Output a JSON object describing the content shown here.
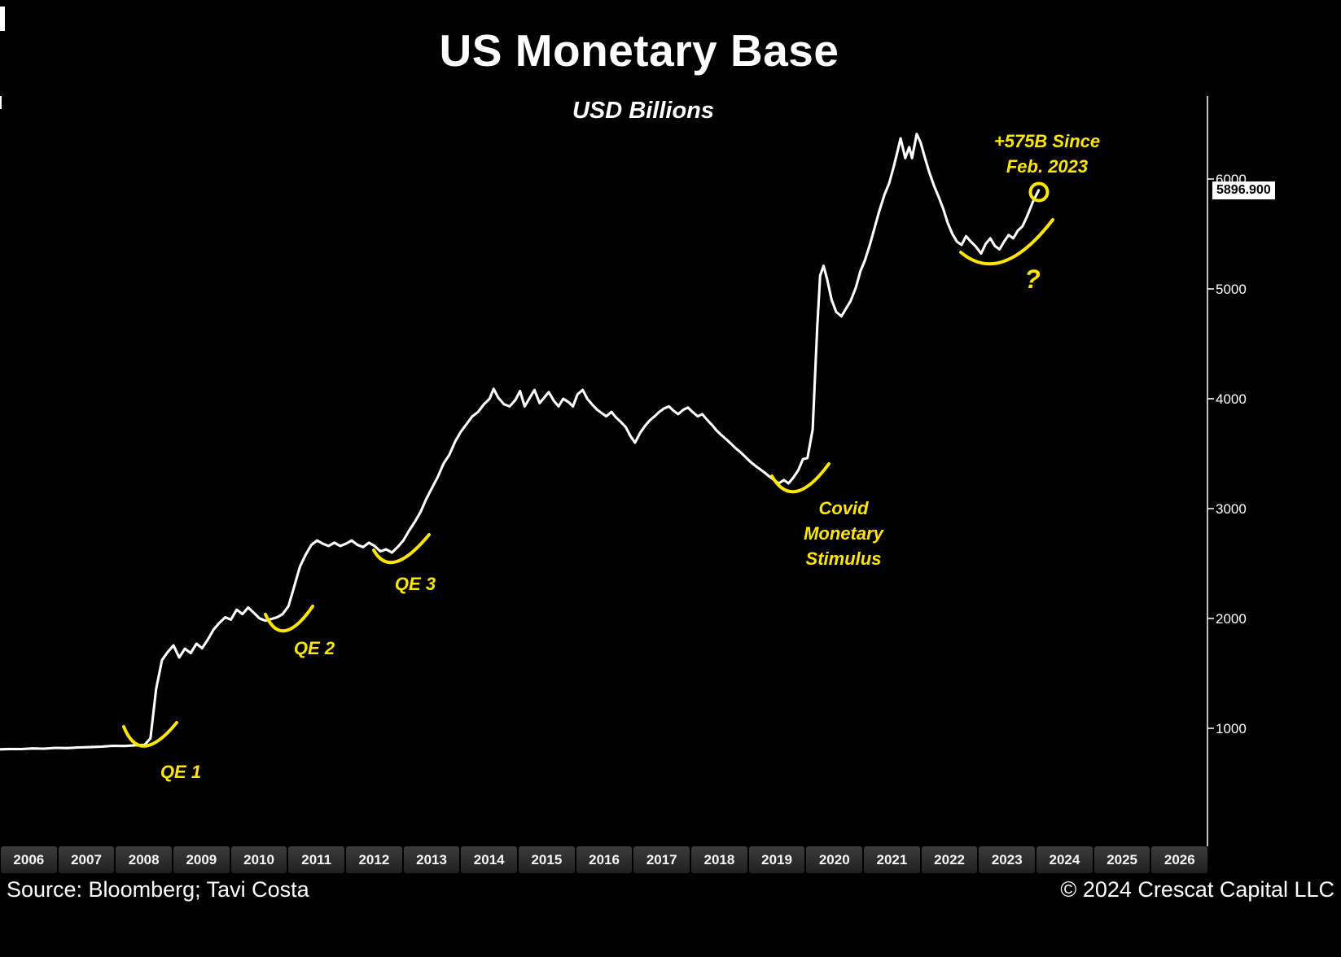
{
  "title": "US Monetary Base",
  "subtitle": "USD Billions",
  "price_label": "5896.900",
  "annotations": {
    "qe1": "QE 1",
    "qe2": "QE 2",
    "qe3": "QE 3",
    "covid": [
      "Covid",
      "Monetary",
      "Stimulus"
    ],
    "since": [
      "+575B Since",
      "Feb. 2023"
    ],
    "question": "?"
  },
  "footer": {
    "source": "Source: Bloomberg; Tavi Costa",
    "copyright": "© 2024 Crescat Capital LLC"
  },
  "colors": {
    "background": "#000000",
    "line": "#ffffff",
    "annotation": "#ffe600",
    "axis_text": "#ffffff",
    "year_label": "#f5f5f5"
  },
  "chart_data": {
    "type": "line",
    "title": "US Monetary Base",
    "ylabel": "USD Billions",
    "unit": "USD Billions",
    "grid": false,
    "legend": false,
    "xlim": [
      2006,
      2026.5
    ],
    "ylim": [
      700,
      6600
    ],
    "x_tick_labels": [
      "2006",
      "2007",
      "2008",
      "2009",
      "2010",
      "2011",
      "2012",
      "2013",
      "2014",
      "2015",
      "2016",
      "2017",
      "2018",
      "2019",
      "2020",
      "2021",
      "2022",
      "2023",
      "2024",
      "2025",
      "2026"
    ],
    "y_ticks": [
      1000,
      2000,
      3000,
      4000,
      5000,
      6000
    ],
    "y_tick_labels": [
      "1000",
      "2000",
      "3000",
      "4000",
      "5000",
      "6000"
    ],
    "last_value": 5896.9,
    "series": [
      {
        "name": "US Monetary Base (USD billions)",
        "points": [
          [
            2006.0,
            808
          ],
          [
            2006.2,
            812
          ],
          [
            2006.4,
            811
          ],
          [
            2006.6,
            817
          ],
          [
            2006.8,
            815
          ],
          [
            2007.0,
            822
          ],
          [
            2007.2,
            820
          ],
          [
            2007.4,
            826
          ],
          [
            2007.6,
            829
          ],
          [
            2007.8,
            833
          ],
          [
            2008.0,
            841
          ],
          [
            2008.2,
            839
          ],
          [
            2008.4,
            846
          ],
          [
            2008.55,
            850
          ],
          [
            2008.65,
            910
          ],
          [
            2008.75,
            1360
          ],
          [
            2008.85,
            1620
          ],
          [
            2008.95,
            1695
          ],
          [
            2009.05,
            1755
          ],
          [
            2009.15,
            1645
          ],
          [
            2009.25,
            1725
          ],
          [
            2009.35,
            1685
          ],
          [
            2009.45,
            1770
          ],
          [
            2009.55,
            1730
          ],
          [
            2009.65,
            1810
          ],
          [
            2009.75,
            1900
          ],
          [
            2009.85,
            1960
          ],
          [
            2009.95,
            2010
          ],
          [
            2010.05,
            1990
          ],
          [
            2010.15,
            2080
          ],
          [
            2010.25,
            2040
          ],
          [
            2010.35,
            2100
          ],
          [
            2010.45,
            2050
          ],
          [
            2010.55,
            2000
          ],
          [
            2010.65,
            1980
          ],
          [
            2010.75,
            1995
          ],
          [
            2010.85,
            2010
          ],
          [
            2010.95,
            2040
          ],
          [
            2011.05,
            2110
          ],
          [
            2011.15,
            2290
          ],
          [
            2011.25,
            2470
          ],
          [
            2011.35,
            2580
          ],
          [
            2011.45,
            2670
          ],
          [
            2011.55,
            2710
          ],
          [
            2011.65,
            2680
          ],
          [
            2011.75,
            2660
          ],
          [
            2011.85,
            2690
          ],
          [
            2011.95,
            2660
          ],
          [
            2012.05,
            2680
          ],
          [
            2012.15,
            2710
          ],
          [
            2012.25,
            2670
          ],
          [
            2012.35,
            2650
          ],
          [
            2012.45,
            2690
          ],
          [
            2012.55,
            2660
          ],
          [
            2012.65,
            2610
          ],
          [
            2012.75,
            2630
          ],
          [
            2012.85,
            2600
          ],
          [
            2012.95,
            2650
          ],
          [
            2013.05,
            2710
          ],
          [
            2013.15,
            2800
          ],
          [
            2013.25,
            2880
          ],
          [
            2013.35,
            2970
          ],
          [
            2013.45,
            3090
          ],
          [
            2013.55,
            3190
          ],
          [
            2013.65,
            3290
          ],
          [
            2013.75,
            3410
          ],
          [
            2013.85,
            3490
          ],
          [
            2013.95,
            3610
          ],
          [
            2014.05,
            3700
          ],
          [
            2014.15,
            3770
          ],
          [
            2014.25,
            3840
          ],
          [
            2014.35,
            3880
          ],
          [
            2014.45,
            3950
          ],
          [
            2014.55,
            4000
          ],
          [
            2014.62,
            4090
          ],
          [
            2014.7,
            4010
          ],
          [
            2014.8,
            3950
          ],
          [
            2014.9,
            3930
          ],
          [
            2015.0,
            3990
          ],
          [
            2015.08,
            4070
          ],
          [
            2015.16,
            3930
          ],
          [
            2015.25,
            4010
          ],
          [
            2015.33,
            4080
          ],
          [
            2015.42,
            3960
          ],
          [
            2015.5,
            4010
          ],
          [
            2015.58,
            4060
          ],
          [
            2015.67,
            3980
          ],
          [
            2015.75,
            3930
          ],
          [
            2015.83,
            4000
          ],
          [
            2015.92,
            3970
          ],
          [
            2016.0,
            3930
          ],
          [
            2016.08,
            4040
          ],
          [
            2016.17,
            4080
          ],
          [
            2016.25,
            4000
          ],
          [
            2016.33,
            3950
          ],
          [
            2016.42,
            3900
          ],
          [
            2016.5,
            3870
          ],
          [
            2016.58,
            3840
          ],
          [
            2016.67,
            3880
          ],
          [
            2016.75,
            3830
          ],
          [
            2016.83,
            3790
          ],
          [
            2016.92,
            3740
          ],
          [
            2017.0,
            3660
          ],
          [
            2017.08,
            3600
          ],
          [
            2017.17,
            3690
          ],
          [
            2017.25,
            3750
          ],
          [
            2017.33,
            3800
          ],
          [
            2017.42,
            3840
          ],
          [
            2017.5,
            3880
          ],
          [
            2017.58,
            3910
          ],
          [
            2017.67,
            3930
          ],
          [
            2017.75,
            3890
          ],
          [
            2017.83,
            3860
          ],
          [
            2017.92,
            3900
          ],
          [
            2018.0,
            3920
          ],
          [
            2018.08,
            3880
          ],
          [
            2018.17,
            3840
          ],
          [
            2018.25,
            3860
          ],
          [
            2018.33,
            3810
          ],
          [
            2018.42,
            3760
          ],
          [
            2018.5,
            3710
          ],
          [
            2018.58,
            3670
          ],
          [
            2018.67,
            3630
          ],
          [
            2018.75,
            3590
          ],
          [
            2018.83,
            3550
          ],
          [
            2018.92,
            3510
          ],
          [
            2019.0,
            3470
          ],
          [
            2019.08,
            3430
          ],
          [
            2019.17,
            3390
          ],
          [
            2019.25,
            3360
          ],
          [
            2019.33,
            3330
          ],
          [
            2019.42,
            3290
          ],
          [
            2019.5,
            3260
          ],
          [
            2019.58,
            3230
          ],
          [
            2019.67,
            3260
          ],
          [
            2019.75,
            3230
          ],
          [
            2019.83,
            3280
          ],
          [
            2019.92,
            3350
          ],
          [
            2020.0,
            3450
          ],
          [
            2020.08,
            3460
          ],
          [
            2020.17,
            3720
          ],
          [
            2020.25,
            4650
          ],
          [
            2020.3,
            5120
          ],
          [
            2020.36,
            5210
          ],
          [
            2020.42,
            5090
          ],
          [
            2020.5,
            4900
          ],
          [
            2020.58,
            4790
          ],
          [
            2020.67,
            4750
          ],
          [
            2020.75,
            4820
          ],
          [
            2020.83,
            4890
          ],
          [
            2020.92,
            5010
          ],
          [
            2021.0,
            5160
          ],
          [
            2021.08,
            5260
          ],
          [
            2021.17,
            5410
          ],
          [
            2021.25,
            5560
          ],
          [
            2021.33,
            5710
          ],
          [
            2021.42,
            5860
          ],
          [
            2021.5,
            5960
          ],
          [
            2021.58,
            6110
          ],
          [
            2021.65,
            6260
          ],
          [
            2021.7,
            6370
          ],
          [
            2021.78,
            6190
          ],
          [
            2021.85,
            6290
          ],
          [
            2021.9,
            6190
          ],
          [
            2021.98,
            6410
          ],
          [
            2022.05,
            6330
          ],
          [
            2022.13,
            6180
          ],
          [
            2022.2,
            6060
          ],
          [
            2022.28,
            5940
          ],
          [
            2022.36,
            5840
          ],
          [
            2022.44,
            5730
          ],
          [
            2022.52,
            5600
          ],
          [
            2022.6,
            5500
          ],
          [
            2022.68,
            5430
          ],
          [
            2022.76,
            5400
          ],
          [
            2022.84,
            5480
          ],
          [
            2022.92,
            5430
          ],
          [
            2023.0,
            5390
          ],
          [
            2023.1,
            5322
          ],
          [
            2023.18,
            5410
          ],
          [
            2023.26,
            5460
          ],
          [
            2023.34,
            5390
          ],
          [
            2023.42,
            5360
          ],
          [
            2023.5,
            5430
          ],
          [
            2023.58,
            5490
          ],
          [
            2023.66,
            5460
          ],
          [
            2023.74,
            5530
          ],
          [
            2023.82,
            5570
          ],
          [
            2023.9,
            5660
          ],
          [
            2024.0,
            5790
          ],
          [
            2024.1,
            5896.9
          ]
        ]
      }
    ]
  }
}
